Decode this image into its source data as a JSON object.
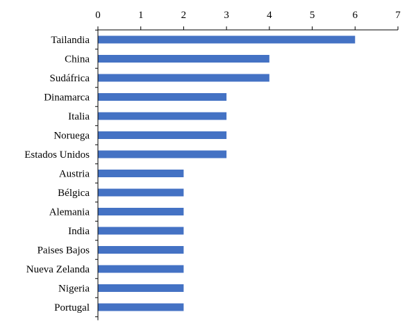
{
  "chart_data": {
    "type": "bar",
    "orientation": "horizontal",
    "categories": [
      "Tailandia",
      "China",
      "Sudáfrica",
      "Dinamarca",
      "Italia",
      "Noruega",
      "Estados Unidos",
      "Austria",
      "Bélgica",
      "Alemania",
      "India",
      "Paises Bajos",
      "Nueva Zelanda",
      "Nigeria",
      "Portugal"
    ],
    "values": [
      6,
      4,
      4,
      3,
      3,
      3,
      3,
      2,
      2,
      2,
      2,
      2,
      2,
      2,
      2
    ],
    "xlim": [
      0,
      7
    ],
    "xticks": [
      0,
      1,
      2,
      3,
      4,
      5,
      6,
      7
    ],
    "x_axis_position": "top",
    "grid": false,
    "legend": "none",
    "title": "",
    "xlabel": "",
    "ylabel": "",
    "bar_color": "#4472C4"
  }
}
